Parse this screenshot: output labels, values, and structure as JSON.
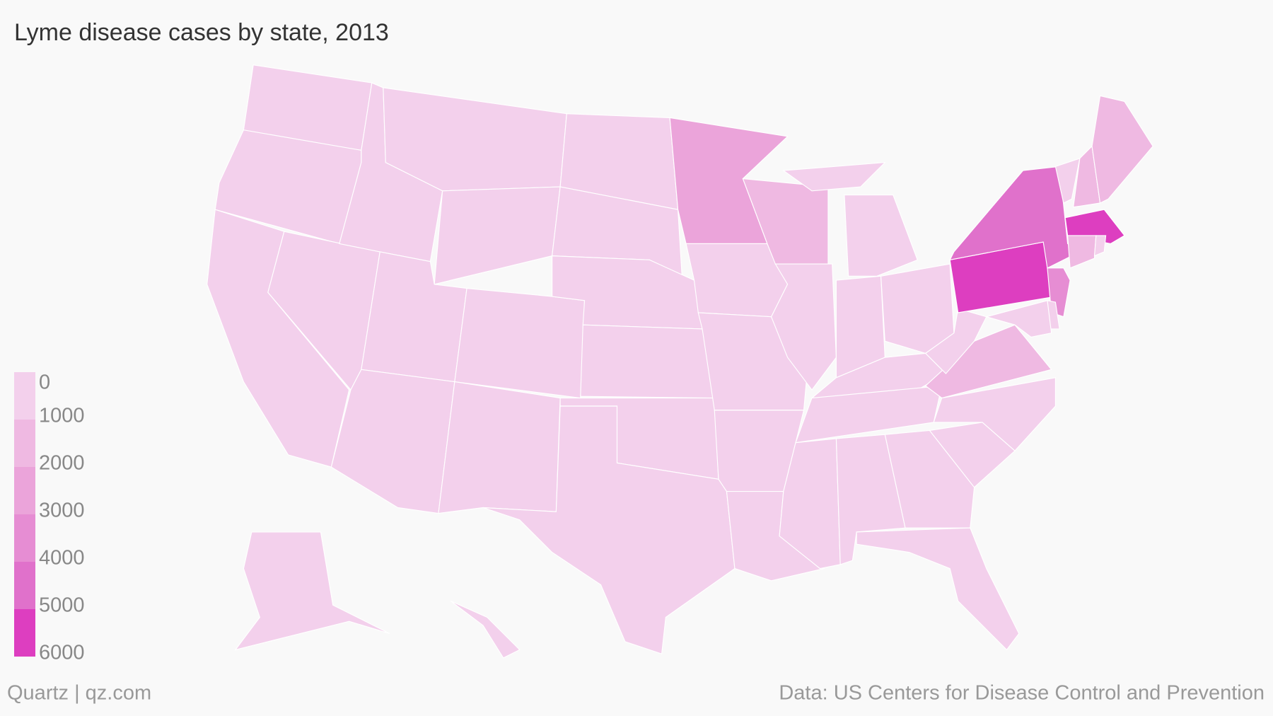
{
  "chart_data": {
    "type": "choropleth",
    "title": "Lyme disease cases by state, 2013",
    "values": [
      20,
      40,
      90,
      10,
      20,
      5,
      10,
      10,
      5,
      10,
      5,
      30,
      10,
      20,
      20,
      5,
      100,
      2200,
      250,
      10,
      5,
      5,
      1700,
      320,
      170,
      120,
      140,
      10,
      40,
      5,
      10,
      20,
      160,
      60,
      140,
      1300,
      230,
      5800,
      4100,
      700,
      1700,
      1400,
      5100,
      1700,
      700,
      3000,
      700,
      800,
      20,
      5
    ],
    "legend_ticks": [
      0,
      1000,
      2000,
      3000,
      4000,
      5000,
      6000
    ],
    "colors": [
      "#f3d0ec",
      "#efb9e2",
      "#eba4da",
      "#e68dd3",
      "#e071cb",
      "#dd3ec0"
    ],
    "source_left": "Quartz | qz.com",
    "source_right": "Data: US Centers for Disease Control and Prevention"
  }
}
